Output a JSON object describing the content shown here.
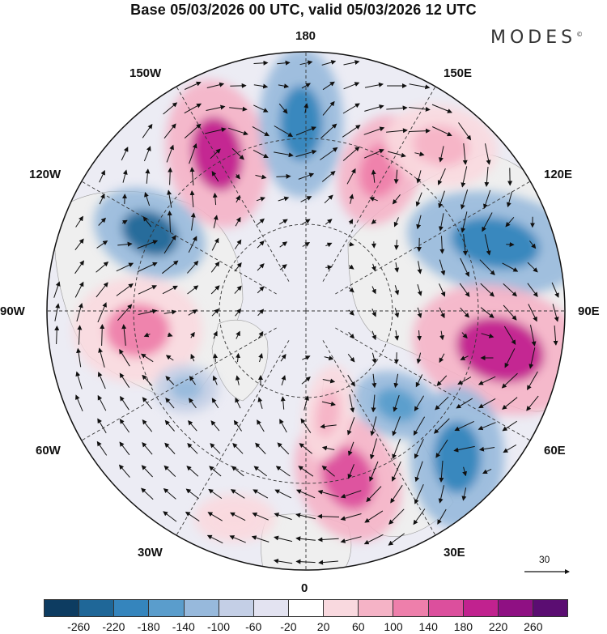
{
  "header": {
    "title": "Base 05/03/2026 00 UTC, valid 05/03/2026 12 UTC",
    "brand": "MODES",
    "brand_mark": "©"
  },
  "map": {
    "longitude_labels": {
      "lon_180": "180",
      "lon_150w": "150W",
      "lon_150e": "150E",
      "lon_120w": "120W",
      "lon_120e": "120E",
      "lon_90w": "90W",
      "lon_90e": "90E",
      "lon_60w": "60W",
      "lon_60e": "60E",
      "lon_30w": "30W",
      "lon_30e": "30E",
      "lon_0": "0"
    },
    "vector_scale_label": "30",
    "land_color": "#efefef",
    "grid_color": "#333333"
  },
  "colorbar": {
    "ticks": [
      "-260",
      "-220",
      "-180",
      "-140",
      "-100",
      "-60",
      "-20",
      "20",
      "60",
      "100",
      "140",
      "180",
      "220",
      "260"
    ],
    "colors": [
      "#0d3c61",
      "#1f6798",
      "#3585bd",
      "#5a9dcc",
      "#97b9dc",
      "#c4cfe6",
      "#e3e3f1",
      "#ffffff",
      "#f9d9df",
      "#f5b3c6",
      "#ee7fab",
      "#dc4f9d",
      "#c1228f",
      "#8f1083",
      "#5b0d72"
    ]
  }
}
